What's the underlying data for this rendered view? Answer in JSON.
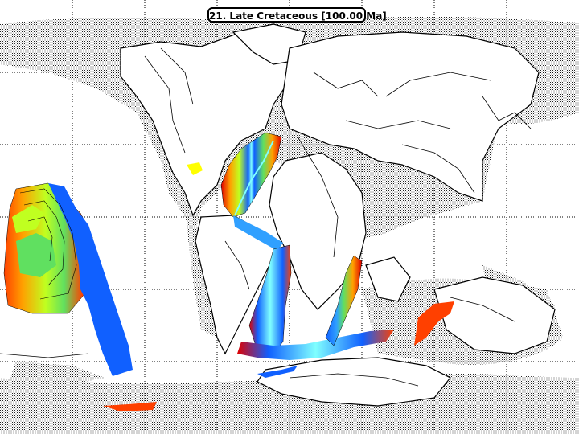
{
  "map": {
    "title": "21. Late Cretaceous [100.00 Ma]",
    "ocean_color": "#ffffff",
    "shelf_pattern": "stipple",
    "land_color": "#ffffff",
    "outline_color": "#000000",
    "grid_color": "#000000",
    "age_palette": [
      "#1060ff",
      "#30a0ff",
      "#80ffff",
      "#60e060",
      "#c0ff20",
      "#ffff00",
      "#ffa000",
      "#ff4000",
      "#e00000"
    ]
  }
}
